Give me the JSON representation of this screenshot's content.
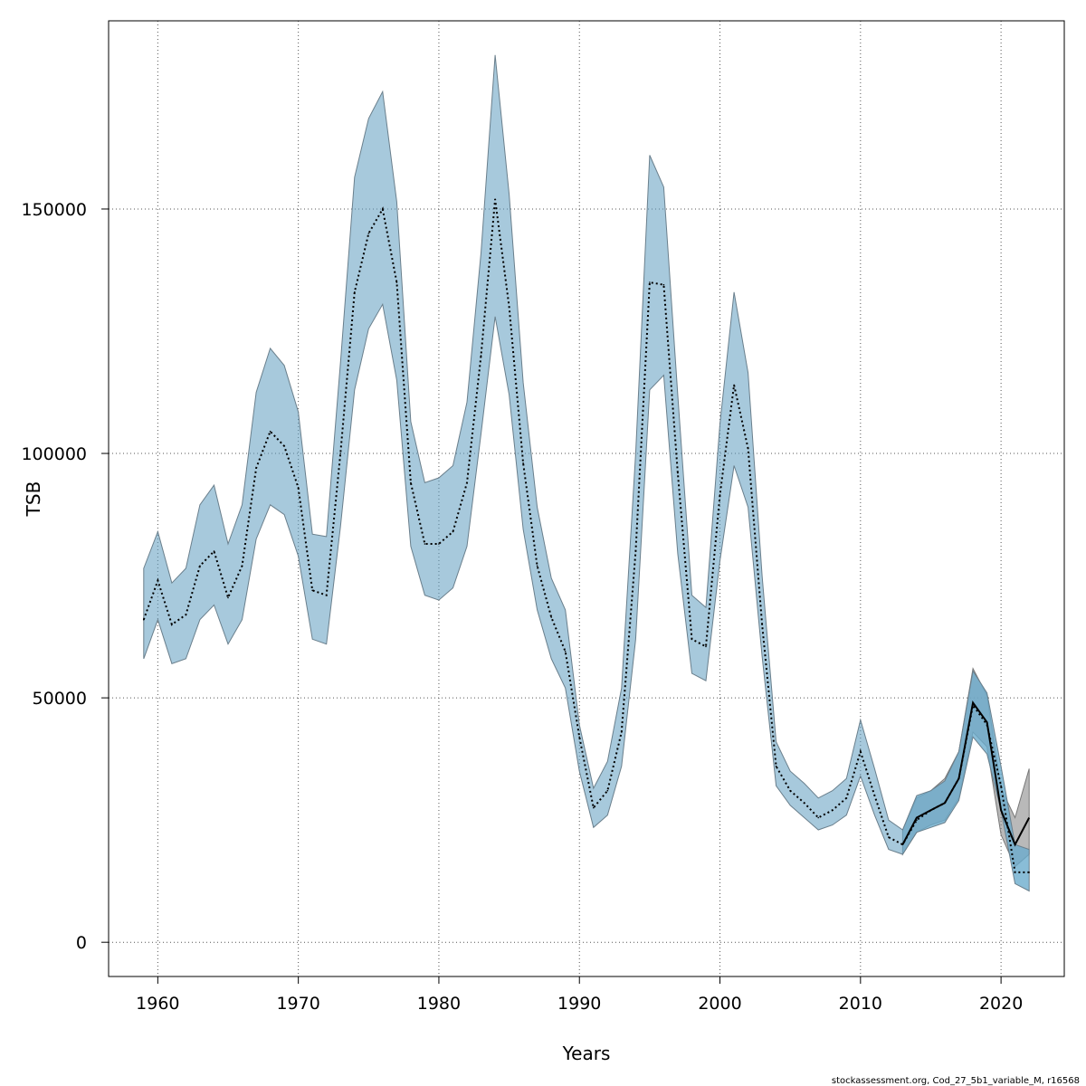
{
  "chart_data": {
    "type": "area",
    "xlabel": "Years",
    "ylabel": "TSB",
    "xlim": [
      1956.5,
      2024.5
    ],
    "ylim": [
      -7000,
      188500
    ],
    "x_ticks": [
      1960,
      1970,
      1980,
      1990,
      2000,
      2010,
      2020
    ],
    "y_ticks": [
      0,
      50000,
      100000,
      150000
    ],
    "grid": true,
    "colors": {
      "band_blue": "#5f9dbf",
      "band_light_blue": "#87ceeb",
      "band_grey": "#7f7f7f",
      "line": "#000000",
      "grid": "#555555"
    },
    "series": [
      {
        "name": "",
        "style": "dotted",
        "color": "#000000",
        "band_color": "#5f9dbf",
        "x": [
          1959,
          1960,
          1961,
          1962,
          1963,
          1964,
          1965,
          1966,
          1967,
          1968,
          1969,
          1970,
          1971,
          1972,
          1973,
          1974,
          1975,
          1976,
          1977,
          1978,
          1979,
          1980,
          1981,
          1982,
          1983,
          1984,
          1985,
          1986,
          1987,
          1988,
          1989,
          1990,
          1991,
          1992,
          1993,
          1994,
          1995,
          1996,
          1997,
          1998,
          1999,
          2000,
          2001,
          2002,
          2003,
          2004,
          2005,
          2006,
          2007,
          2008,
          2009,
          2010,
          2011,
          2012,
          2013,
          2014,
          2015,
          2016,
          2017,
          2018,
          2019,
          2020,
          2021,
          2022
        ],
        "y": [
          66000,
          74000,
          65000,
          67000,
          77000,
          80000,
          70500,
          77000,
          97000,
          104500,
          101500,
          93000,
          72000,
          71000,
          100000,
          133000,
          145000,
          150000,
          135000,
          94000,
          81500,
          81500,
          84000,
          94000,
          120000,
          152000,
          130000,
          98000,
          77000,
          66500,
          59500,
          42000,
          27500,
          31000,
          43000,
          80000,
          135000,
          134500,
          96000,
          62000,
          60500,
          91500,
          114000,
          101000,
          65000,
          36000,
          31000,
          28500,
          25500,
          27000,
          29500,
          39000,
          30000,
          21500,
          20000,
          25000,
          27000,
          28500,
          33500,
          48500,
          44500,
          32000,
          14300,
          14300
        ],
        "lower": [
          58000,
          66000,
          57000,
          58000,
          66000,
          69000,
          61000,
          66000,
          82500,
          89500,
          87500,
          79000,
          62000,
          61000,
          85000,
          113000,
          125500,
          130500,
          115000,
          81000,
          71000,
          70000,
          72500,
          81000,
          104000,
          128000,
          112000,
          84500,
          68000,
          58000,
          52000,
          35000,
          23500,
          26000,
          36000,
          62000,
          113000,
          116000,
          79500,
          55000,
          53500,
          78000,
          97500,
          89000,
          58500,
          32000,
          28000,
          25500,
          23000,
          24000,
          26000,
          34000,
          26000,
          19000,
          18000,
          22500,
          23500,
          24500,
          29000,
          42000,
          38500,
          27000,
          12000,
          10500
        ],
        "upper": [
          76500,
          84000,
          73500,
          76500,
          89500,
          93500,
          81500,
          89500,
          112500,
          121500,
          118000,
          108500,
          83500,
          83000,
          118500,
          156500,
          168500,
          174000,
          151500,
          106500,
          94000,
          95000,
          97500,
          110500,
          141000,
          181500,
          153000,
          114500,
          89000,
          74500,
          68000,
          44500,
          31500,
          37000,
          52000,
          100000,
          161000,
          154500,
          112000,
          71000,
          68500,
          106000,
          133000,
          116500,
          75000,
          41000,
          35000,
          32500,
          29500,
          31000,
          33500,
          45500,
          35500,
          25000,
          23000,
          30000,
          31000,
          33000,
          39000,
          55500,
          51000,
          36000,
          20000,
          19000
        ]
      },
      {
        "name": "",
        "style": "solid",
        "color": "#000000",
        "band_color": "#7f7f7f",
        "x": [
          2013,
          2014,
          2015,
          2016,
          2017,
          2018,
          2019,
          2020,
          2021,
          2022
        ],
        "y": [
          20000,
          25500,
          27000,
          28500,
          33500,
          49000,
          45000,
          27000,
          20000,
          25500
        ],
        "lower": [
          18000,
          22500,
          24000,
          25000,
          29500,
          43000,
          40000,
          22000,
          15500,
          18000
        ],
        "upper": [
          23000,
          29500,
          31000,
          33500,
          39000,
          56000,
          50500,
          31500,
          25500,
          35500
        ]
      }
    ]
  },
  "footer": {
    "credit": "stockassessment.org, Cod_27_5b1_variable_M, r16568"
  }
}
